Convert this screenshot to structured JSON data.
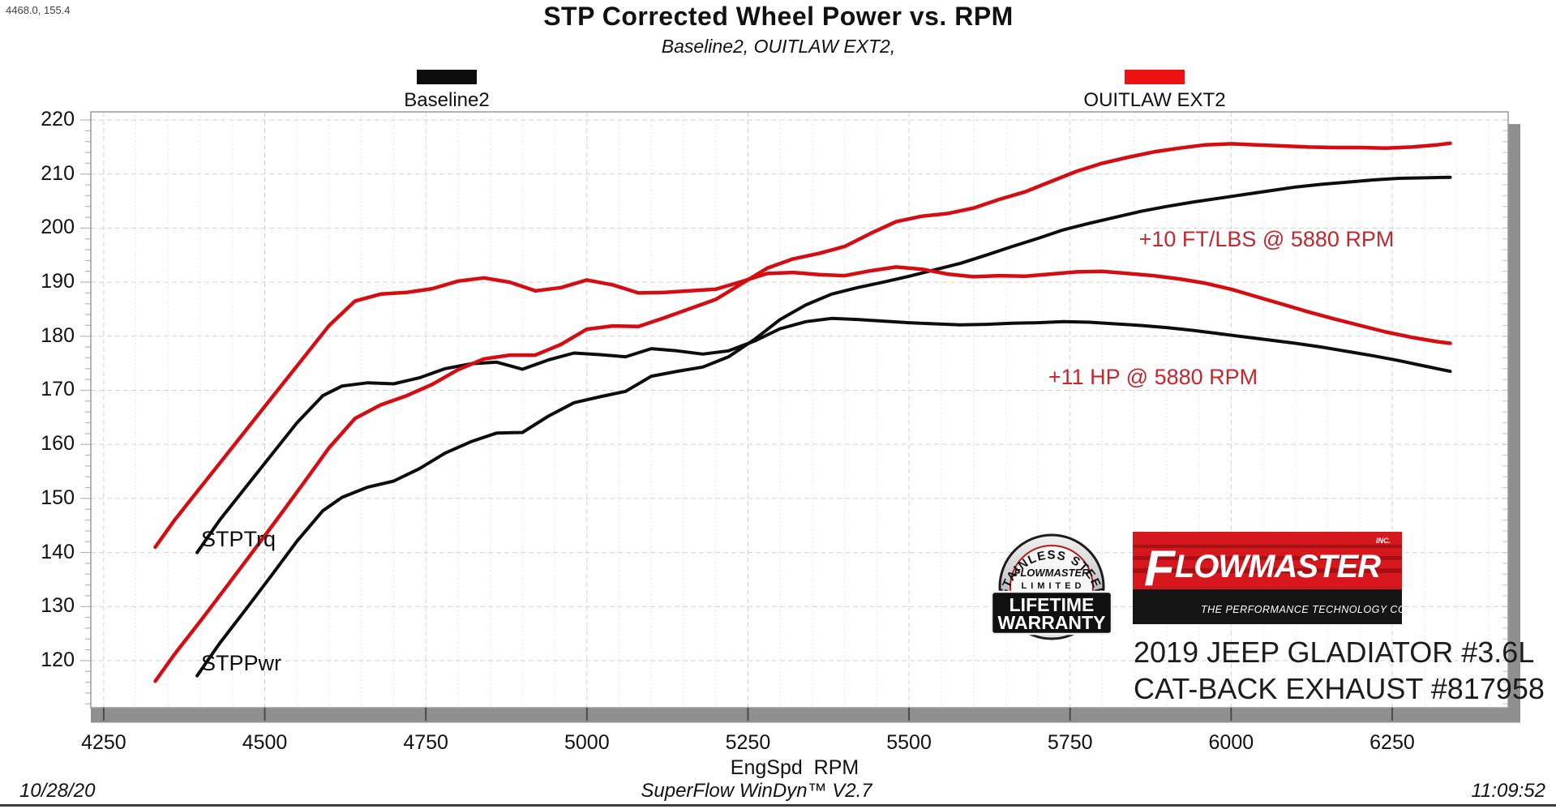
{
  "header": {
    "cursor_readout": "4468.0, 155.4",
    "title": "STP Corrected Wheel Power vs. RPM",
    "subtitle": "Baseline2, OUITLAW EXT2,"
  },
  "legend": [
    {
      "label": "Baseline2",
      "color": "#0d0d0d"
    },
    {
      "label": "OUITLAW EXT2",
      "color": "#ee1111"
    }
  ],
  "curve_labels": {
    "torque": "STPTrq",
    "power": "STPPwr"
  },
  "annotations": {
    "torque_gain": "+10 FT/LBS @ 5880 RPM",
    "power_gain": "+11 HP @ 5880 RPM",
    "color": "#c1272d"
  },
  "branding": {
    "badge": {
      "arc_text": "STAINLESS STEEL",
      "brand": "FLOWMASTER",
      "limited": "LIMITED",
      "line1": "LIFETIME",
      "line2": "WARRANTY"
    },
    "logo": {
      "brand_f": "F",
      "brand_rest": "LOWMASTER",
      "inc": "INC.",
      "tagline": "THE PERFORMANCE TECHNOLOGY COMPANY",
      "red": "#d6181e",
      "black": "#141414"
    },
    "vehicle_line1": "2019 JEEP GLADIATOR #3.6L",
    "vehicle_line2": "CAT-BACK EXHAUST #817958"
  },
  "footer": {
    "date": "10/28/20",
    "software": "SuperFlow WinDyn™ V2.7",
    "time": "11:09:52"
  },
  "chart_data": {
    "type": "line",
    "title": "STP Corrected Wheel Power vs. RPM",
    "subtitle": "Baseline2, OUITLAW EXT2,",
    "xlabel": "EngSpd  RPM",
    "ylabel": "",
    "xlim": [
      4230,
      6430
    ],
    "ylim": [
      111.3,
      221.5
    ],
    "x_major_ticks": [
      4250,
      4500,
      4750,
      5000,
      5250,
      5500,
      5750,
      6000,
      6250
    ],
    "x_minor_step": 50,
    "y_major_ticks": [
      120,
      130,
      140,
      150,
      160,
      170,
      180,
      190,
      200,
      210,
      220
    ],
    "y_minor_step": 2,
    "grid": true,
    "legend_position": "top",
    "series": [
      {
        "name": "STPTrq Baseline2",
        "channel": "STPTrq",
        "run": "Baseline2",
        "color": "#0d0d0d",
        "width": 4,
        "points": [
          [
            4395,
            140.0
          ],
          [
            4430,
            146.0
          ],
          [
            4470,
            152.0
          ],
          [
            4510,
            158.0
          ],
          [
            4550,
            164.0
          ],
          [
            4590,
            169.0
          ],
          [
            4620,
            170.8
          ],
          [
            4660,
            171.4
          ],
          [
            4700,
            171.2
          ],
          [
            4740,
            172.3
          ],
          [
            4780,
            174.0
          ],
          [
            4820,
            174.9
          ],
          [
            4860,
            175.2
          ],
          [
            4900,
            173.9
          ],
          [
            4940,
            175.6
          ],
          [
            4980,
            176.9
          ],
          [
            5020,
            176.6
          ],
          [
            5060,
            176.2
          ],
          [
            5100,
            177.7
          ],
          [
            5140,
            177.3
          ],
          [
            5180,
            176.7
          ],
          [
            5220,
            177.3
          ],
          [
            5260,
            179.1
          ],
          [
            5300,
            181.4
          ],
          [
            5340,
            182.7
          ],
          [
            5380,
            183.3
          ],
          [
            5420,
            183.1
          ],
          [
            5460,
            182.8
          ],
          [
            5500,
            182.5
          ],
          [
            5540,
            182.3
          ],
          [
            5580,
            182.1
          ],
          [
            5620,
            182.2
          ],
          [
            5660,
            182.4
          ],
          [
            5700,
            182.5
          ],
          [
            5740,
            182.7
          ],
          [
            5780,
            182.6
          ],
          [
            5820,
            182.3
          ],
          [
            5860,
            182.0
          ],
          [
            5900,
            181.6
          ],
          [
            5940,
            181.1
          ],
          [
            5980,
            180.5
          ],
          [
            6020,
            179.9
          ],
          [
            6060,
            179.3
          ],
          [
            6100,
            178.7
          ],
          [
            6140,
            178.0
          ],
          [
            6180,
            177.2
          ],
          [
            6220,
            176.4
          ],
          [
            6260,
            175.5
          ],
          [
            6300,
            174.5
          ],
          [
            6340,
            173.5
          ]
        ]
      },
      {
        "name": "STPPwr Baseline2",
        "channel": "STPPwr",
        "run": "Baseline2",
        "color": "#0d0d0d",
        "width": 4,
        "points": [
          [
            4395,
            117.2
          ],
          [
            4430,
            123.2
          ],
          [
            4470,
            129.4
          ],
          [
            4510,
            135.7
          ],
          [
            4550,
            142.1
          ],
          [
            4590,
            147.7
          ],
          [
            4620,
            150.2
          ],
          [
            4660,
            152.1
          ],
          [
            4700,
            153.2
          ],
          [
            4740,
            155.5
          ],
          [
            4780,
            158.4
          ],
          [
            4820,
            160.5
          ],
          [
            4860,
            162.1
          ],
          [
            4900,
            162.2
          ],
          [
            4940,
            165.2
          ],
          [
            4980,
            167.7
          ],
          [
            5020,
            168.8
          ],
          [
            5060,
            169.8
          ],
          [
            5100,
            172.6
          ],
          [
            5140,
            173.5
          ],
          [
            5180,
            174.3
          ],
          [
            5220,
            176.2
          ],
          [
            5260,
            179.4
          ],
          [
            5300,
            183.1
          ],
          [
            5340,
            185.8
          ],
          [
            5380,
            187.8
          ],
          [
            5420,
            189.0
          ],
          [
            5460,
            190.0
          ],
          [
            5500,
            191.1
          ],
          [
            5540,
            192.3
          ],
          [
            5580,
            193.5
          ],
          [
            5620,
            195.0
          ],
          [
            5660,
            196.6
          ],
          [
            5700,
            198.1
          ],
          [
            5740,
            199.7
          ],
          [
            5780,
            200.9
          ],
          [
            5820,
            202.0
          ],
          [
            5860,
            203.1
          ],
          [
            5900,
            204.0
          ],
          [
            5940,
            204.8
          ],
          [
            5980,
            205.5
          ],
          [
            6020,
            206.2
          ],
          [
            6060,
            206.9
          ],
          [
            6100,
            207.6
          ],
          [
            6140,
            208.1
          ],
          [
            6180,
            208.5
          ],
          [
            6220,
            208.9
          ],
          [
            6260,
            209.2
          ],
          [
            6300,
            209.3
          ],
          [
            6340,
            209.4
          ]
        ]
      },
      {
        "name": "STPTrq OUITLAW EXT2",
        "channel": "STPTrq",
        "run": "OUITLAW EXT2",
        "color": "#d40d12",
        "width": 4.5,
        "points": [
          [
            4330,
            141.0
          ],
          [
            4360,
            146.0
          ],
          [
            4400,
            152.0
          ],
          [
            4440,
            158.0
          ],
          [
            4480,
            164.0
          ],
          [
            4520,
            170.0
          ],
          [
            4560,
            176.0
          ],
          [
            4600,
            182.0
          ],
          [
            4640,
            186.5
          ],
          [
            4680,
            187.8
          ],
          [
            4720,
            188.1
          ],
          [
            4760,
            188.8
          ],
          [
            4800,
            190.2
          ],
          [
            4840,
            190.8
          ],
          [
            4880,
            190.0
          ],
          [
            4920,
            188.4
          ],
          [
            4960,
            189.0
          ],
          [
            5000,
            190.4
          ],
          [
            5040,
            189.5
          ],
          [
            5080,
            188.0
          ],
          [
            5120,
            188.1
          ],
          [
            5160,
            188.4
          ],
          [
            5200,
            188.7
          ],
          [
            5240,
            190.1
          ],
          [
            5280,
            191.6
          ],
          [
            5320,
            191.8
          ],
          [
            5360,
            191.4
          ],
          [
            5400,
            191.2
          ],
          [
            5440,
            192.1
          ],
          [
            5480,
            192.8
          ],
          [
            5520,
            192.4
          ],
          [
            5560,
            191.5
          ],
          [
            5600,
            191.0
          ],
          [
            5640,
            191.2
          ],
          [
            5680,
            191.1
          ],
          [
            5720,
            191.5
          ],
          [
            5760,
            191.9
          ],
          [
            5800,
            192.0
          ],
          [
            5840,
            191.6
          ],
          [
            5880,
            191.2
          ],
          [
            5920,
            190.6
          ],
          [
            5960,
            189.8
          ],
          [
            6000,
            188.7
          ],
          [
            6040,
            187.3
          ],
          [
            6080,
            185.9
          ],
          [
            6120,
            184.5
          ],
          [
            6160,
            183.2
          ],
          [
            6200,
            182.0
          ],
          [
            6240,
            180.8
          ],
          [
            6280,
            179.8
          ],
          [
            6320,
            179.0
          ],
          [
            6340,
            178.7
          ]
        ]
      },
      {
        "name": "STPPwr OUITLAW EXT2",
        "channel": "STPPwr",
        "run": "OUITLAW EXT2",
        "color": "#d40d12",
        "width": 4.5,
        "points": [
          [
            4330,
            116.2
          ],
          [
            4360,
            121.2
          ],
          [
            4400,
            127.3
          ],
          [
            4440,
            133.6
          ],
          [
            4480,
            139.9
          ],
          [
            4520,
            146.3
          ],
          [
            4560,
            152.8
          ],
          [
            4600,
            159.4
          ],
          [
            4640,
            164.8
          ],
          [
            4680,
            167.3
          ],
          [
            4720,
            169.0
          ],
          [
            4760,
            171.1
          ],
          [
            4800,
            173.8
          ],
          [
            4840,
            175.8
          ],
          [
            4880,
            176.5
          ],
          [
            4920,
            176.5
          ],
          [
            4960,
            178.5
          ],
          [
            5000,
            181.3
          ],
          [
            5040,
            181.9
          ],
          [
            5080,
            181.8
          ],
          [
            5120,
            183.4
          ],
          [
            5160,
            185.1
          ],
          [
            5200,
            186.8
          ],
          [
            5240,
            189.7
          ],
          [
            5280,
            192.6
          ],
          [
            5320,
            194.3
          ],
          [
            5360,
            195.3
          ],
          [
            5400,
            196.6
          ],
          [
            5440,
            199.0
          ],
          [
            5480,
            201.2
          ],
          [
            5520,
            202.2
          ],
          [
            5560,
            202.7
          ],
          [
            5600,
            203.7
          ],
          [
            5640,
            205.3
          ],
          [
            5680,
            206.7
          ],
          [
            5720,
            208.6
          ],
          [
            5760,
            210.5
          ],
          [
            5800,
            212.0
          ],
          [
            5840,
            213.1
          ],
          [
            5880,
            214.1
          ],
          [
            5920,
            214.8
          ],
          [
            5960,
            215.4
          ],
          [
            6000,
            215.6
          ],
          [
            6040,
            215.4
          ],
          [
            6080,
            215.2
          ],
          [
            6120,
            215.0
          ],
          [
            6160,
            214.9
          ],
          [
            6200,
            214.9
          ],
          [
            6240,
            214.8
          ],
          [
            6280,
            215.0
          ],
          [
            6320,
            215.4
          ],
          [
            6340,
            215.7
          ]
        ]
      }
    ]
  }
}
